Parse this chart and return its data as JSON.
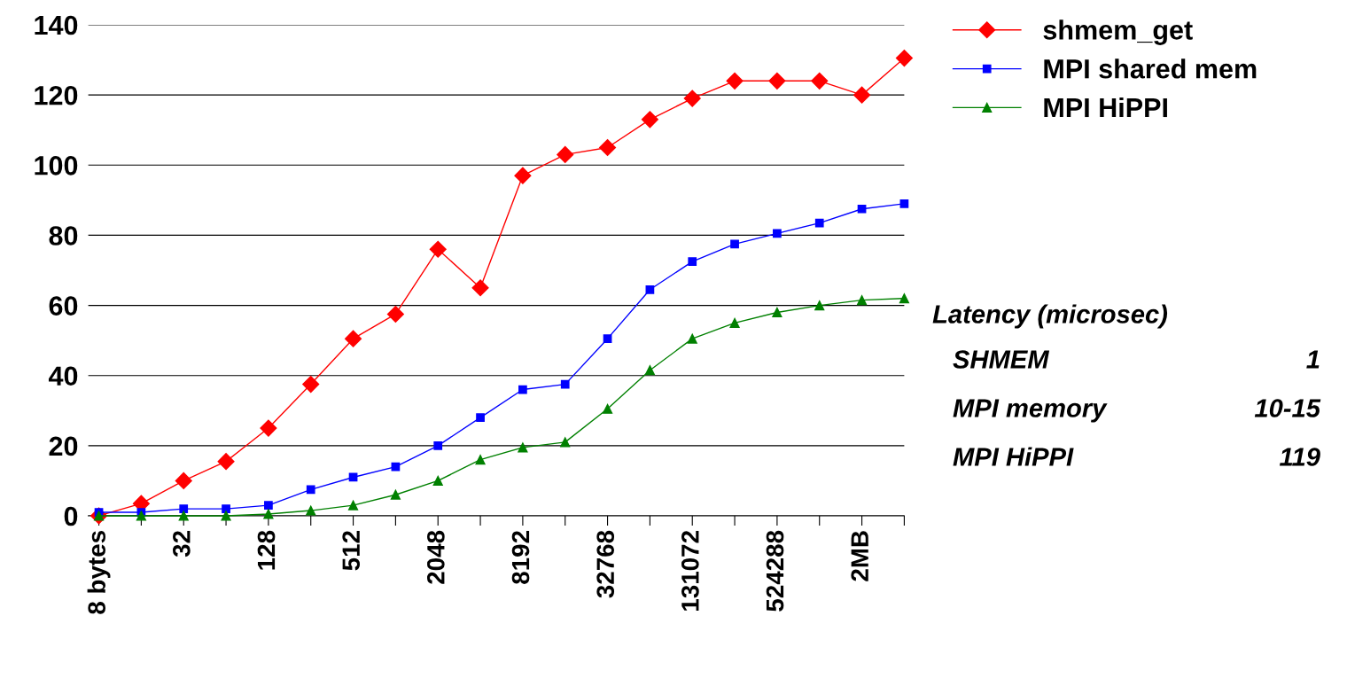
{
  "chart_data": {
    "type": "line",
    "categories": [
      "8 bytes",
      null,
      "32",
      null,
      "128",
      null,
      "512",
      null,
      "2048",
      null,
      "8192",
      null,
      "32768",
      null,
      "131072",
      null,
      "524288",
      null,
      "2MB",
      null
    ],
    "series": [
      {
        "name": "shmem_get",
        "color": "#ff0000",
        "marker": "diamond",
        "values": [
          0,
          3.5,
          10,
          15.5,
          25,
          37.5,
          50.5,
          57.5,
          76,
          65,
          97,
          103,
          105,
          113,
          119,
          124,
          124,
          124,
          120,
          130.5
        ]
      },
      {
        "name": "MPI shared mem",
        "color": "#0000ff",
        "marker": "square",
        "values": [
          1,
          1,
          2,
          2,
          3,
          7.5,
          11,
          14,
          20,
          28,
          36,
          37.5,
          50.5,
          64.5,
          72.5,
          77.5,
          80.5,
          83.5,
          87.5,
          89
        ]
      },
      {
        "name": "MPI HiPPI",
        "color": "#008000",
        "marker": "triangle",
        "values": [
          0,
          0,
          0,
          0,
          0.5,
          1.5,
          3,
          6,
          10,
          16,
          19.5,
          21,
          30.5,
          41.5,
          50.5,
          55,
          58,
          60,
          61.5,
          62
        ]
      }
    ],
    "ylim": [
      0,
      140
    ],
    "yticks": [
      0,
      20,
      40,
      60,
      80,
      100,
      120,
      140
    ],
    "grid": "y",
    "legend": "top right",
    "annotations": [
      "Latency (microsec)",
      "SHMEM",
      "1",
      "MPI memory",
      "10-15",
      "MPI HiPPI",
      "119"
    ]
  }
}
